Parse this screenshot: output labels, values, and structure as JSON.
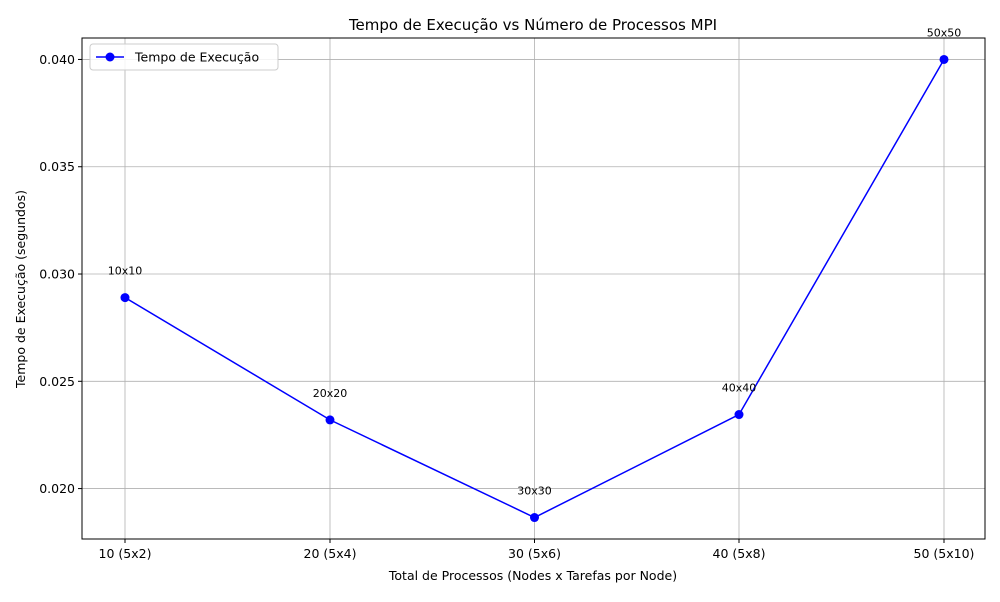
{
  "chart_data": {
    "type": "line",
    "title": "Tempo de Execução vs Número de Processos MPI",
    "xlabel": "Total de Processos (Nodes x Tarefas por Node)",
    "ylabel": "Tempo de Execução (segundos)",
    "categories": [
      "10 (5x2)",
      "20 (5x4)",
      "30 (5x6)",
      "40 (5x8)",
      "50 (5x10)"
    ],
    "series": [
      {
        "name": "Tempo de Execução",
        "values": [
          0.0289,
          0.0232,
          0.01865,
          0.02345,
          0.04
        ],
        "color": "#0000ff",
        "marker": "circle"
      }
    ],
    "annotations": [
      "10x10",
      "20x20",
      "30x30",
      "40x40",
      "50x50"
    ],
    "yticks": [
      "0.020",
      "0.025",
      "0.030",
      "0.035",
      "0.040"
    ],
    "ytick_values": [
      0.02,
      0.025,
      0.03,
      0.035,
      0.04
    ],
    "ylim": [
      0.01765,
      0.041
    ],
    "grid": true,
    "legend_position": "upper-left"
  }
}
